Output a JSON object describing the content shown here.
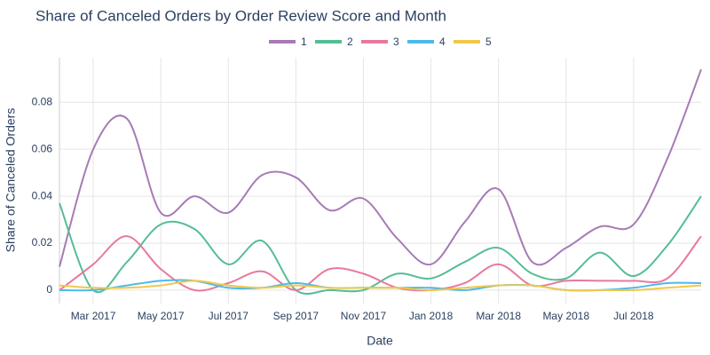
{
  "chart_data": {
    "type": "line",
    "title": "Share of Canceled Orders by Order Review Score and Month",
    "x_label": "Date",
    "y_label": "Share of Canceled Orders",
    "x": [
      "2017-02",
      "2017-03",
      "2017-04",
      "2017-05",
      "2017-06",
      "2017-07",
      "2017-08",
      "2017-09",
      "2017-10",
      "2017-11",
      "2017-12",
      "2018-01",
      "2018-02",
      "2018-03",
      "2018-04",
      "2018-05",
      "2018-06",
      "2018-07",
      "2018-08",
      "2018-09"
    ],
    "xlim": [
      "2017-02",
      "2018-09"
    ],
    "xticks": [
      {
        "value": "2017-03",
        "label": "Mar 2017"
      },
      {
        "value": "2017-05",
        "label": "May 2017"
      },
      {
        "value": "2017-07",
        "label": "Jul 2017"
      },
      {
        "value": "2017-09",
        "label": "Sep 2017"
      },
      {
        "value": "2017-11",
        "label": "Nov 2017"
      },
      {
        "value": "2018-01",
        "label": "Jan 2018"
      },
      {
        "value": "2018-03",
        "label": "Mar 2018"
      },
      {
        "value": "2018-05",
        "label": "May 2018"
      },
      {
        "value": "2018-07",
        "label": "Jul 2018"
      }
    ],
    "ylim": [
      -0.0057,
      0.099
    ],
    "yticks": [
      0,
      0.02,
      0.04,
      0.06,
      0.08
    ],
    "grid": true,
    "smooth": true,
    "series": [
      {
        "name": "1",
        "color": "#a67bb5",
        "values": [
          0.01,
          0.06,
          0.073,
          0.033,
          0.04,
          0.033,
          0.049,
          0.048,
          0.034,
          0.039,
          0.022,
          0.011,
          0.029,
          0.043,
          0.012,
          0.018,
          0.027,
          0.028,
          0.056,
          0.094
        ]
      },
      {
        "name": "2",
        "color": "#55bd95",
        "values": [
          0.037,
          0.0,
          0.012,
          0.028,
          0.026,
          0.011,
          0.021,
          0.0,
          0.0,
          0.0,
          0.007,
          0.005,
          0.012,
          0.018,
          0.007,
          0.005,
          0.016,
          0.006,
          0.019,
          0.04
        ]
      },
      {
        "name": "3",
        "color": "#e8799c",
        "values": [
          0.0,
          0.011,
          0.023,
          0.009,
          0.0,
          0.003,
          0.008,
          0.0,
          0.009,
          0.007,
          0.001,
          0.0,
          0.003,
          0.011,
          0.002,
          0.004,
          0.004,
          0.004,
          0.005,
          0.023
        ]
      },
      {
        "name": "4",
        "color": "#4fb9e8",
        "values": [
          0.0,
          0.0,
          0.002,
          0.004,
          0.004,
          0.001,
          0.001,
          0.003,
          0.001,
          0.001,
          0.001,
          0.001,
          0.0,
          0.002,
          0.002,
          0.0,
          0.0,
          0.001,
          0.003,
          0.003
        ]
      },
      {
        "name": "5",
        "color": "#f0c84a",
        "values": [
          0.002,
          0.001,
          0.001,
          0.002,
          0.004,
          0.002,
          0.001,
          0.002,
          0.001,
          0.001,
          0.001,
          0.0,
          0.001,
          0.002,
          0.002,
          0.0,
          0.0,
          0.0,
          0.001,
          0.002
        ]
      }
    ]
  }
}
